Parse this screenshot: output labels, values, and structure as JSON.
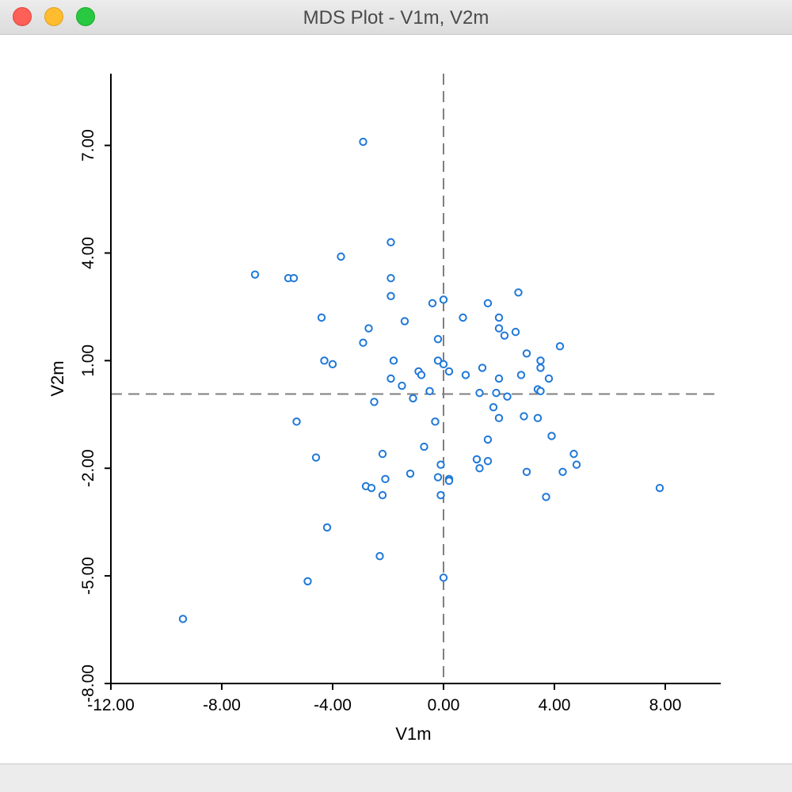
{
  "window": {
    "title": "MDS Plot - V1m, V2m"
  },
  "colors": {
    "point": "#1f78d8",
    "axis": "#000000",
    "reference_line": "#7f7f7f"
  },
  "chart_data": {
    "type": "scatter",
    "xlabel": "V1m",
    "ylabel": "V2m",
    "xlim": [
      -12,
      10
    ],
    "ylim": [
      -8,
      9
    ],
    "x_ticks": [
      -12,
      -8,
      -4,
      0,
      4,
      8
    ],
    "y_ticks": [
      -8,
      -5,
      -2,
      1,
      4,
      7
    ],
    "x_tick_labels": [
      "-12.00",
      "-8.00",
      "-4.00",
      "0.00",
      "4.00",
      "8.00"
    ],
    "y_tick_labels": [
      "-8.00",
      "-5.00",
      "-2.00",
      "1.00",
      "4.00",
      "7.00"
    ],
    "reference_lines": {
      "x": 0.0,
      "y": 0.07
    },
    "points": [
      [
        -2.9,
        7.1
      ],
      [
        -1.9,
        4.3
      ],
      [
        -3.7,
        3.9
      ],
      [
        -6.8,
        3.4
      ],
      [
        -5.6,
        3.3
      ],
      [
        -5.4,
        3.3
      ],
      [
        -1.9,
        3.3
      ],
      [
        -1.9,
        2.8
      ],
      [
        -4.4,
        2.2
      ],
      [
        -2.7,
        1.9
      ],
      [
        -2.9,
        1.5
      ],
      [
        -1.4,
        2.1
      ],
      [
        -0.4,
        2.6
      ],
      [
        0.0,
        2.7
      ],
      [
        0.7,
        2.2
      ],
      [
        1.6,
        2.6
      ],
      [
        2.7,
        2.9
      ],
      [
        2.0,
        2.2
      ],
      [
        2.0,
        1.9
      ],
      [
        2.6,
        1.8
      ],
      [
        2.2,
        1.7
      ],
      [
        -0.2,
        1.6
      ],
      [
        -4.3,
        1.0
      ],
      [
        -4.0,
        0.9
      ],
      [
        -1.8,
        1.0
      ],
      [
        -0.2,
        1.0
      ],
      [
        0.0,
        0.9
      ],
      [
        0.2,
        0.7
      ],
      [
        -0.9,
        0.7
      ],
      [
        -0.8,
        0.6
      ],
      [
        0.8,
        0.6
      ],
      [
        -1.9,
        0.5
      ],
      [
        -1.5,
        0.3
      ],
      [
        -0.5,
        0.15
      ],
      [
        1.4,
        0.8
      ],
      [
        3.0,
        1.2
      ],
      [
        3.5,
        1.0
      ],
      [
        3.5,
        0.8
      ],
      [
        4.2,
        1.4
      ],
      [
        2.8,
        0.6
      ],
      [
        3.8,
        0.5
      ],
      [
        2.0,
        0.5
      ],
      [
        1.9,
        0.1
      ],
      [
        2.3,
        0.0
      ],
      [
        3.4,
        0.2
      ],
      [
        3.5,
        0.15
      ],
      [
        1.3,
        0.1
      ],
      [
        -1.1,
        -0.05
      ],
      [
        -2.5,
        -0.15
      ],
      [
        -5.3,
        -0.7
      ],
      [
        -0.3,
        -0.7
      ],
      [
        2.0,
        -0.6
      ],
      [
        2.9,
        -0.55
      ],
      [
        3.4,
        -0.6
      ],
      [
        1.8,
        -0.3
      ],
      [
        3.9,
        -1.1
      ],
      [
        1.6,
        -1.2
      ],
      [
        -0.7,
        -1.4
      ],
      [
        -4.6,
        -1.7
      ],
      [
        -2.2,
        -1.6
      ],
      [
        1.2,
        -1.75
      ],
      [
        1.6,
        -1.8
      ],
      [
        4.7,
        -1.6
      ],
      [
        4.8,
        -1.9
      ],
      [
        1.3,
        -2.0
      ],
      [
        4.3,
        -2.1
      ],
      [
        3.0,
        -2.1
      ],
      [
        -0.1,
        -1.9
      ],
      [
        -1.2,
        -2.15
      ],
      [
        -0.2,
        -2.25
      ],
      [
        0.2,
        -2.3
      ],
      [
        0.2,
        -2.35
      ],
      [
        -2.1,
        -2.3
      ],
      [
        -2.8,
        -2.5
      ],
      [
        -2.6,
        -2.55
      ],
      [
        -2.2,
        -2.75
      ],
      [
        -0.1,
        -2.75
      ],
      [
        3.7,
        -2.8
      ],
      [
        7.8,
        -2.55
      ],
      [
        -4.2,
        -3.65
      ],
      [
        -2.3,
        -4.45
      ],
      [
        -4.9,
        -5.15
      ],
      [
        0.0,
        -5.05
      ],
      [
        -9.4,
        -6.2
      ]
    ]
  }
}
